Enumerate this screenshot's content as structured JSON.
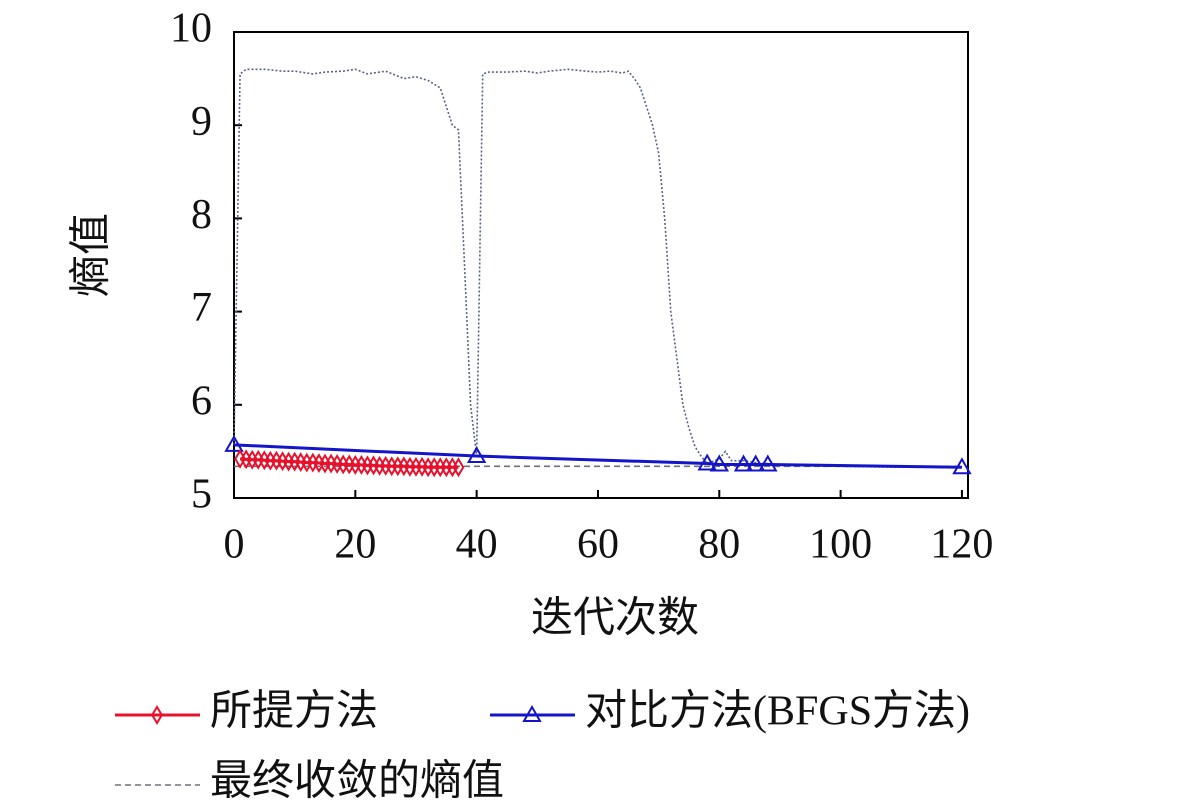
{
  "chart_data": {
    "type": "line",
    "xlabel": "迭代次数",
    "ylabel": "熵值",
    "xlim": [
      0,
      121
    ],
    "xticks": [
      0,
      20,
      40,
      60,
      80,
      100,
      120
    ],
    "ylim": [
      5,
      10
    ],
    "yticks": [
      5,
      6,
      7,
      8,
      9,
      10
    ],
    "series": [
      {
        "color": "#56648a",
        "dash": "dotted",
        "x": [
          0,
          1,
          2,
          5,
          8,
          10,
          13,
          15,
          18,
          20,
          22,
          25,
          28,
          30,
          32,
          34,
          35,
          36,
          37,
          38,
          39,
          40,
          41,
          42,
          45,
          48,
          50,
          52,
          55,
          58,
          60,
          62,
          64,
          65,
          66,
          67,
          68,
          69,
          70,
          71,
          72,
          73,
          74,
          75,
          76,
          77,
          78,
          80,
          81,
          82,
          84,
          86,
          88,
          90,
          100,
          110,
          120
        ],
        "values": [
          5.57,
          9.55,
          9.6,
          9.6,
          9.58,
          9.58,
          9.55,
          9.57,
          9.58,
          9.6,
          9.55,
          9.58,
          9.5,
          9.52,
          9.48,
          9.4,
          9.2,
          9.0,
          8.95,
          7.5,
          6.0,
          5.45,
          9.55,
          9.57,
          9.57,
          9.58,
          9.56,
          9.58,
          9.6,
          9.58,
          9.57,
          9.58,
          9.56,
          9.58,
          9.5,
          9.4,
          9.2,
          9.0,
          8.7,
          8.0,
          7.0,
          6.5,
          6.0,
          5.75,
          5.55,
          5.45,
          5.37,
          5.42,
          5.5,
          5.4,
          5.4,
          5.38,
          5.37,
          5.35,
          5.34,
          5.33,
          5.33
        ]
      },
      {
        "name": "最终收敛的熵值",
        "color": "#6f6f80",
        "dash": "dashed",
        "x": [
          0,
          120
        ],
        "values": [
          5.34,
          5.34
        ]
      },
      {
        "name": "对比方法(BFGS方法)",
        "color": "#1414c8",
        "marker": "triangle",
        "x": [
          0,
          40,
          78,
          80,
          84,
          86,
          88,
          120
        ],
        "values": [
          5.57,
          5.45,
          5.37,
          5.36,
          5.36,
          5.36,
          5.36,
          5.33
        ]
      },
      {
        "name": "所提方法",
        "color": "#e8102a",
        "marker": "diamond",
        "x": [
          1,
          2,
          3,
          4,
          5,
          6,
          7,
          8,
          9,
          10,
          11,
          12,
          13,
          14,
          15,
          16,
          17,
          18,
          19,
          20,
          21,
          22,
          23,
          24,
          25,
          26,
          27,
          28,
          29,
          30,
          31,
          32,
          33,
          34,
          35,
          36,
          37
        ],
        "values": [
          5.42,
          5.415,
          5.41,
          5.41,
          5.405,
          5.4,
          5.4,
          5.395,
          5.39,
          5.39,
          5.385,
          5.38,
          5.38,
          5.375,
          5.37,
          5.37,
          5.365,
          5.36,
          5.36,
          5.355,
          5.355,
          5.35,
          5.35,
          5.345,
          5.345,
          5.34,
          5.34,
          5.34,
          5.335,
          5.335,
          5.335,
          5.33,
          5.33,
          5.33,
          5.33,
          5.33,
          5.33
        ]
      }
    ]
  }
}
